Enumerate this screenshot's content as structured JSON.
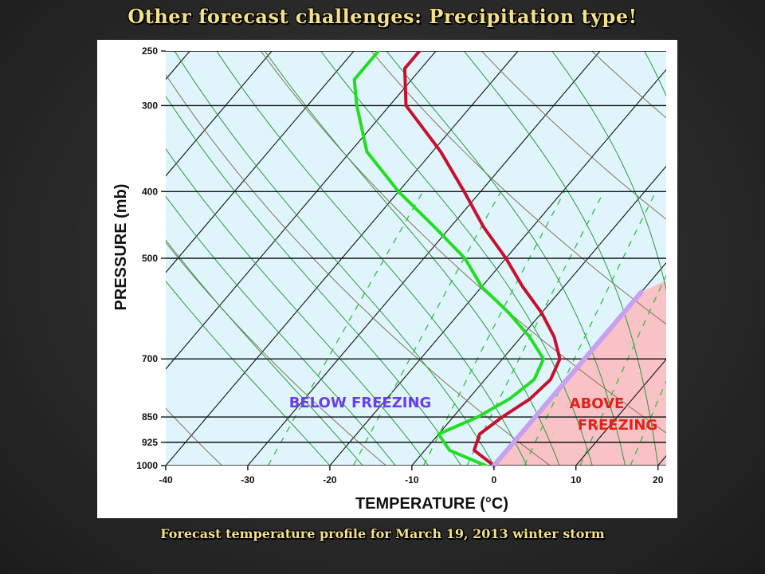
{
  "slide": {
    "title": "Other forecast challenges:  Precipitation type!",
    "caption": "Forecast temperature profile for March 19, 2013 winter storm"
  },
  "chart_data": {
    "type": "line",
    "subtype": "skew-T log-P diagram",
    "xlabel": "TEMPERATURE (°C)",
    "ylabel": "PRESSURE (mb)",
    "x_ticks": [
      -40,
      -30,
      -20,
      -10,
      0,
      10,
      20
    ],
    "x_tick_labels": [
      "-40",
      "-30",
      "-20",
      "-10",
      "0",
      "10",
      "20"
    ],
    "y_ticks": [
      250,
      300,
      400,
      500,
      700,
      850,
      925,
      1000
    ],
    "y_tick_labels": [
      "250",
      "300",
      "400",
      "500",
      "700",
      "850",
      "925",
      "1000"
    ],
    "y_scale": "log, inverted",
    "series": [
      {
        "type": "temperature",
        "color": "#c8102e",
        "points": [
          [
            -52,
            250
          ],
          [
            -52,
            265
          ],
          [
            -48,
            300
          ],
          [
            -39,
            350
          ],
          [
            -32,
            400
          ],
          [
            -26,
            450
          ],
          [
            -20,
            500
          ],
          [
            -15,
            550
          ],
          [
            -10,
            600
          ],
          [
            -6,
            650
          ],
          [
            -3,
            700
          ],
          [
            -2,
            750
          ],
          [
            -2.5,
            800
          ],
          [
            -4,
            850
          ],
          [
            -5,
            900
          ],
          [
            -4,
            950
          ],
          [
            0,
            1000
          ]
        ]
      },
      {
        "type": "dewpoint",
        "color": "#22dd22",
        "points": [
          [
            -57,
            250
          ],
          [
            -57,
            275
          ],
          [
            -54,
            300
          ],
          [
            -48,
            350
          ],
          [
            -40,
            400
          ],
          [
            -32,
            450
          ],
          [
            -25,
            500
          ],
          [
            -20,
            550
          ],
          [
            -14,
            600
          ],
          [
            -9,
            650
          ],
          [
            -5,
            700
          ],
          [
            -4,
            750
          ],
          [
            -5,
            800
          ],
          [
            -7,
            850
          ],
          [
            -10,
            900
          ],
          [
            -7,
            950
          ],
          [
            -1,
            1000
          ]
        ]
      }
    ],
    "freezing_line": {
      "color": "#c8a0f0",
      "temperature": 0
    },
    "annotations": [
      {
        "text": "BELOW FREEZING",
        "color": "#6a3df0"
      },
      {
        "text": "ABOVE",
        "color": "#e0221a"
      },
      {
        "text": "FREEZING",
        "color": "#e0221a"
      }
    ],
    "colors": {
      "cold_region": "#dff5fb",
      "warm_region": "#f9c2c6",
      "isobar": "#111111",
      "isotherm": "#111111",
      "dry_adiabat": "#8a6e58",
      "moist_adiabat": "#2a9a3a",
      "mixing_ratio": "#2fbf3f"
    }
  }
}
